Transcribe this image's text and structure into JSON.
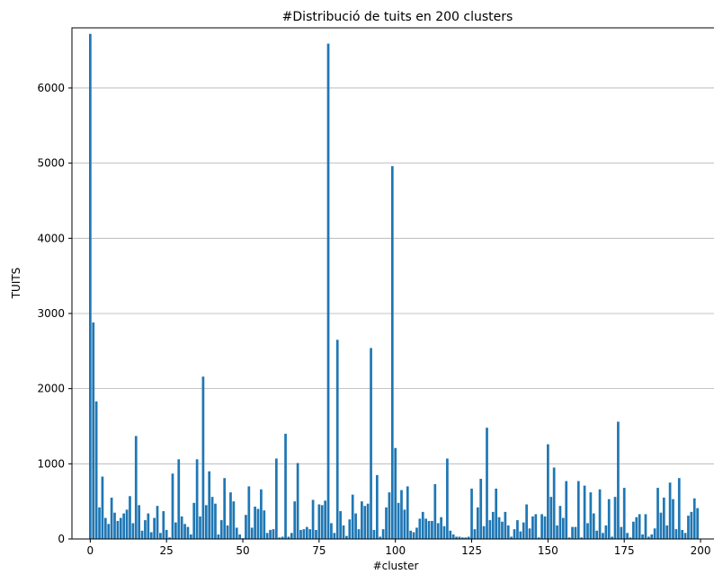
{
  "chart_data": {
    "type": "bar",
    "title": "#Distribució de tuits en 200 clusters",
    "xlabel": "#cluster",
    "ylabel": "TUITS",
    "xlim": [
      -6,
      205
    ],
    "ylim": [
      0,
      6800
    ],
    "xticks": [
      0,
      25,
      50,
      75,
      100,
      125,
      150,
      175,
      200
    ],
    "yticks": [
      0,
      1000,
      2000,
      3000,
      4000,
      5000,
      6000
    ],
    "grid": "horizontal",
    "bar_color": "#1f77b4",
    "x": [
      0,
      1,
      2,
      3,
      4,
      5,
      6,
      7,
      8,
      9,
      10,
      11,
      12,
      13,
      14,
      15,
      16,
      17,
      18,
      19,
      20,
      21,
      22,
      23,
      24,
      25,
      26,
      27,
      28,
      29,
      30,
      31,
      32,
      33,
      34,
      35,
      36,
      37,
      38,
      39,
      40,
      41,
      42,
      43,
      44,
      45,
      46,
      47,
      48,
      49,
      50,
      51,
      52,
      53,
      54,
      55,
      56,
      57,
      58,
      59,
      60,
      61,
      62,
      63,
      64,
      65,
      66,
      67,
      68,
      69,
      70,
      71,
      72,
      73,
      74,
      75,
      76,
      77,
      78,
      79,
      80,
      81,
      82,
      83,
      84,
      85,
      86,
      87,
      88,
      89,
      90,
      91,
      92,
      93,
      94,
      95,
      96,
      97,
      98,
      99,
      100,
      101,
      102,
      103,
      104,
      105,
      106,
      107,
      108,
      109,
      110,
      111,
      112,
      113,
      114,
      115,
      116,
      117,
      118,
      119,
      120,
      121,
      122,
      123,
      124,
      125,
      126,
      127,
      128,
      129,
      130,
      131,
      132,
      133,
      134,
      135,
      136,
      137,
      138,
      139,
      140,
      141,
      142,
      143,
      144,
      145,
      146,
      147,
      148,
      149,
      150,
      151,
      152,
      153,
      154,
      155,
      156,
      157,
      158,
      159,
      160,
      161,
      162,
      163,
      164,
      165,
      166,
      167,
      168,
      169,
      170,
      171,
      172,
      173,
      174,
      175,
      176,
      177,
      178,
      179,
      180,
      181,
      182,
      183,
      184,
      185,
      186,
      187,
      188,
      189,
      190,
      191,
      192,
      193,
      194,
      195,
      196,
      197,
      198,
      199
    ],
    "values": [
      6720,
      2880,
      1830,
      420,
      830,
      280,
      200,
      550,
      350,
      240,
      280,
      340,
      390,
      570,
      210,
      1370,
      450,
      110,
      250,
      340,
      90,
      280,
      440,
      80,
      370,
      120,
      20,
      870,
      220,
      1060,
      300,
      200,
      160,
      60,
      480,
      1060,
      300,
      2160,
      450,
      900,
      560,
      470,
      60,
      250,
      810,
      180,
      620,
      500,
      150,
      60,
      10,
      320,
      700,
      150,
      430,
      400,
      660,
      380,
      80,
      120,
      130,
      1070,
      20,
      30,
      1400,
      30,
      80,
      500,
      1010,
      120,
      130,
      160,
      130,
      520,
      120,
      460,
      450,
      510,
      6590,
      210,
      80,
      2650,
      370,
      180,
      40,
      260,
      590,
      340,
      130,
      500,
      440,
      470,
      2540,
      120,
      850,
      30,
      130,
      420,
      620,
      4960,
      1210,
      480,
      650,
      390,
      700,
      110,
      90,
      150,
      270,
      360,
      270,
      240,
      240,
      730,
      210,
      290,
      170,
      1070,
      110,
      60,
      30,
      30,
      20,
      20,
      30,
      670,
      130,
      420,
      800,
      170,
      1480,
      250,
      360,
      670,
      290,
      230,
      360,
      180,
      30,
      130,
      250,
      100,
      220,
      460,
      140,
      300,
      330,
      20,
      330,
      300,
      1260,
      560,
      950,
      180,
      440,
      280,
      770,
      20,
      160,
      160,
      770,
      20,
      710,
      210,
      620,
      340,
      110,
      660,
      80,
      180,
      530,
      30,
      560,
      1560,
      160,
      680,
      80,
      20,
      230,
      290,
      330,
      60,
      330,
      30,
      60,
      140,
      680,
      350,
      550,
      180,
      750,
      530,
      130,
      810,
      120,
      80,
      310,
      360,
      540,
      410
    ]
  }
}
